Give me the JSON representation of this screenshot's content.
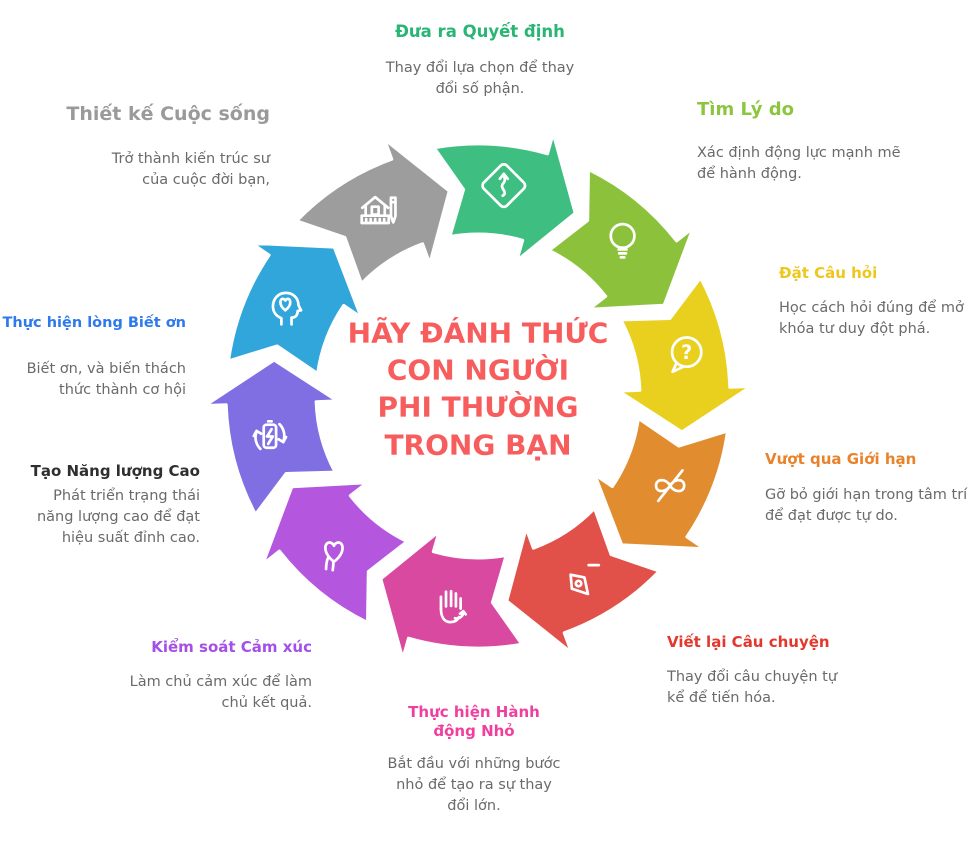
{
  "center": {
    "lines": [
      "HÃY ĐÁNH THỨC",
      "CON NGƯỜI",
      "PHI THƯỜNG",
      "TRONG BẠN"
    ],
    "color": "#f85d5d"
  },
  "segments": [
    {
      "id": "decision",
      "icon": "road-sign-icon",
      "arrow_color": "#3fbe81",
      "title": "Đưa ra Quyết định",
      "title_color": "#29b573",
      "desc": "Thay đổi lựa chọn để thay đổi số phận."
    },
    {
      "id": "reason",
      "icon": "light-bulb-icon",
      "arrow_color": "#8cc23b",
      "title": "Tìm Lý do",
      "title_color": "#8cc63f",
      "desc": "Xác định động lực mạnh mẽ để hành động."
    },
    {
      "id": "question",
      "icon": "question-bubble-icon",
      "arrow_color": "#e9cf1e",
      "title": "Đặt Câu hỏi",
      "title_color": "#eec71d",
      "desc": "Học cách hỏi đúng để mở khóa tư duy đột phá."
    },
    {
      "id": "limits",
      "icon": "broken-limit-icon",
      "arrow_color": "#e08c2f",
      "title": "Vượt qua Giới hạn",
      "title_color": "#e8832c",
      "desc": "Gỡ bỏ giới hạn trong tâm trí để đạt được tự do."
    },
    {
      "id": "story",
      "icon": "pen-nib-icon",
      "arrow_color": "#e15149",
      "title": "Viết lại Câu chuyện",
      "title_color": "#e2382d",
      "desc": "Thay đổi câu chuyện tự kể để tiến hóa."
    },
    {
      "id": "action",
      "icon": "hand-action-icon",
      "arrow_color": "#d9499f",
      "title": "Thực hiện Hành động Nhỏ",
      "title_color": "#ef3f9f",
      "desc": "Bắt đầu với những bước nhỏ để tạo ra sự thay đổi lớn."
    },
    {
      "id": "emotion",
      "icon": "heart-hand-icon",
      "arrow_color": "#b557de",
      "title": "Kiểm soát Cảm xúc",
      "title_color": "#a44fe6",
      "desc": "Làm chủ cảm xúc để làm chủ kết quả."
    },
    {
      "id": "energy",
      "icon": "energy-battery-icon",
      "arrow_color": "#7f6fe3",
      "title": "Tạo Năng lượng Cao",
      "title_color": "#2f2f2f",
      "desc": "Phát triển trạng thái năng lượng cao để đạt hiệu suất đỉnh cao."
    },
    {
      "id": "gratitude",
      "icon": "head-heart-icon",
      "arrow_color": "#31a6db",
      "title": "Thực hiện lòng Biết ơn",
      "title_color": "#2e79ee",
      "desc": "Biết ơn, và biến thách thức thành cơ hội"
    },
    {
      "id": "design",
      "icon": "house-design-icon",
      "arrow_color": "#9d9d9d",
      "title": "Thiết kế Cuộc sống",
      "title_color": "#9a9a9a",
      "desc": "Trở thành kiến trúc sư của cuộc đời bạn,"
    }
  ]
}
